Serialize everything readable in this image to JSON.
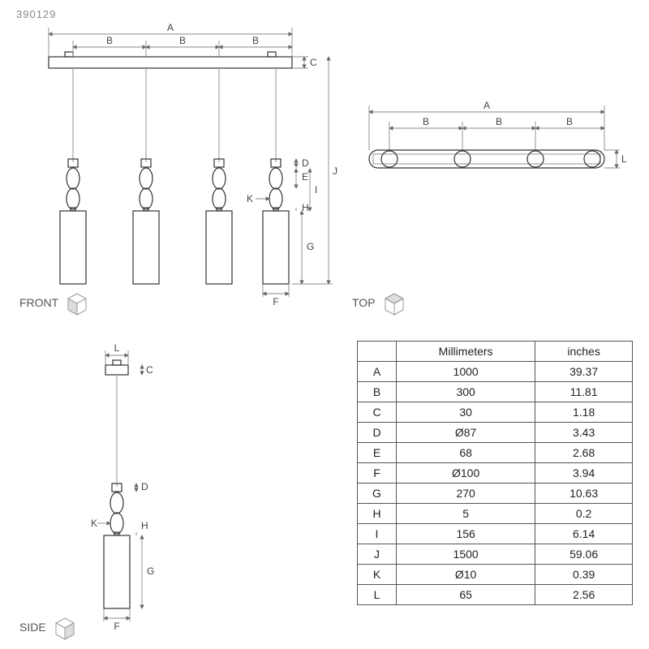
{
  "part_number": "390129",
  "views": {
    "front": "FRONT",
    "top": "TOP",
    "side": "SIDE"
  },
  "front_view": {
    "top_dim_A": "A",
    "top_dim_B": "B",
    "right_dim_C": "C",
    "right_dim_J": "J",
    "right_dim_D": "D",
    "right_dim_E": "E",
    "right_dim_I": "I",
    "right_dim_H": "H",
    "right_dim_G": "G",
    "bottom_dim_F": "F",
    "label_K": "K",
    "ceiling_color": "#ffffff",
    "outline_color": "#333333",
    "pendant_count": 4
  },
  "top_view": {
    "top_dim_A": "A",
    "top_dim_B": "B",
    "right_dim_L": "L",
    "bar_text": "",
    "outline_color": "#333333"
  },
  "side_view": {
    "top_dim_L": "L",
    "right_dim_C": "C",
    "right_dim_D": "D",
    "label_K": "K",
    "right_dim_H": "H",
    "right_dim_G": "G",
    "bottom_dim_F": "F",
    "outline_color": "#333333"
  },
  "dimension_table": {
    "headers": [
      "",
      "Millimeters",
      "inches"
    ],
    "rows": [
      [
        "A",
        "1000",
        "39.37"
      ],
      [
        "B",
        "300",
        "11.81"
      ],
      [
        "C",
        "30",
        "1.18"
      ],
      [
        "D",
        "Ø87",
        "3.43"
      ],
      [
        "E",
        "68",
        "2.68"
      ],
      [
        "F",
        "Ø100",
        "3.94"
      ],
      [
        "G",
        "270",
        "10.63"
      ],
      [
        "H",
        "5",
        "0.2"
      ],
      [
        "I",
        "156",
        "6.14"
      ],
      [
        "J",
        "1500",
        "59.06"
      ],
      [
        "K",
        "Ø10",
        "0.39"
      ],
      [
        "L",
        "65",
        "2.56"
      ]
    ],
    "border_color": "#555555",
    "font_size_pt": 11
  },
  "colors": {
    "background": "#ffffff",
    "line_main": "#333333",
    "line_dim": "#888888",
    "text_dim": "#444444",
    "label_gray": "#888888"
  }
}
